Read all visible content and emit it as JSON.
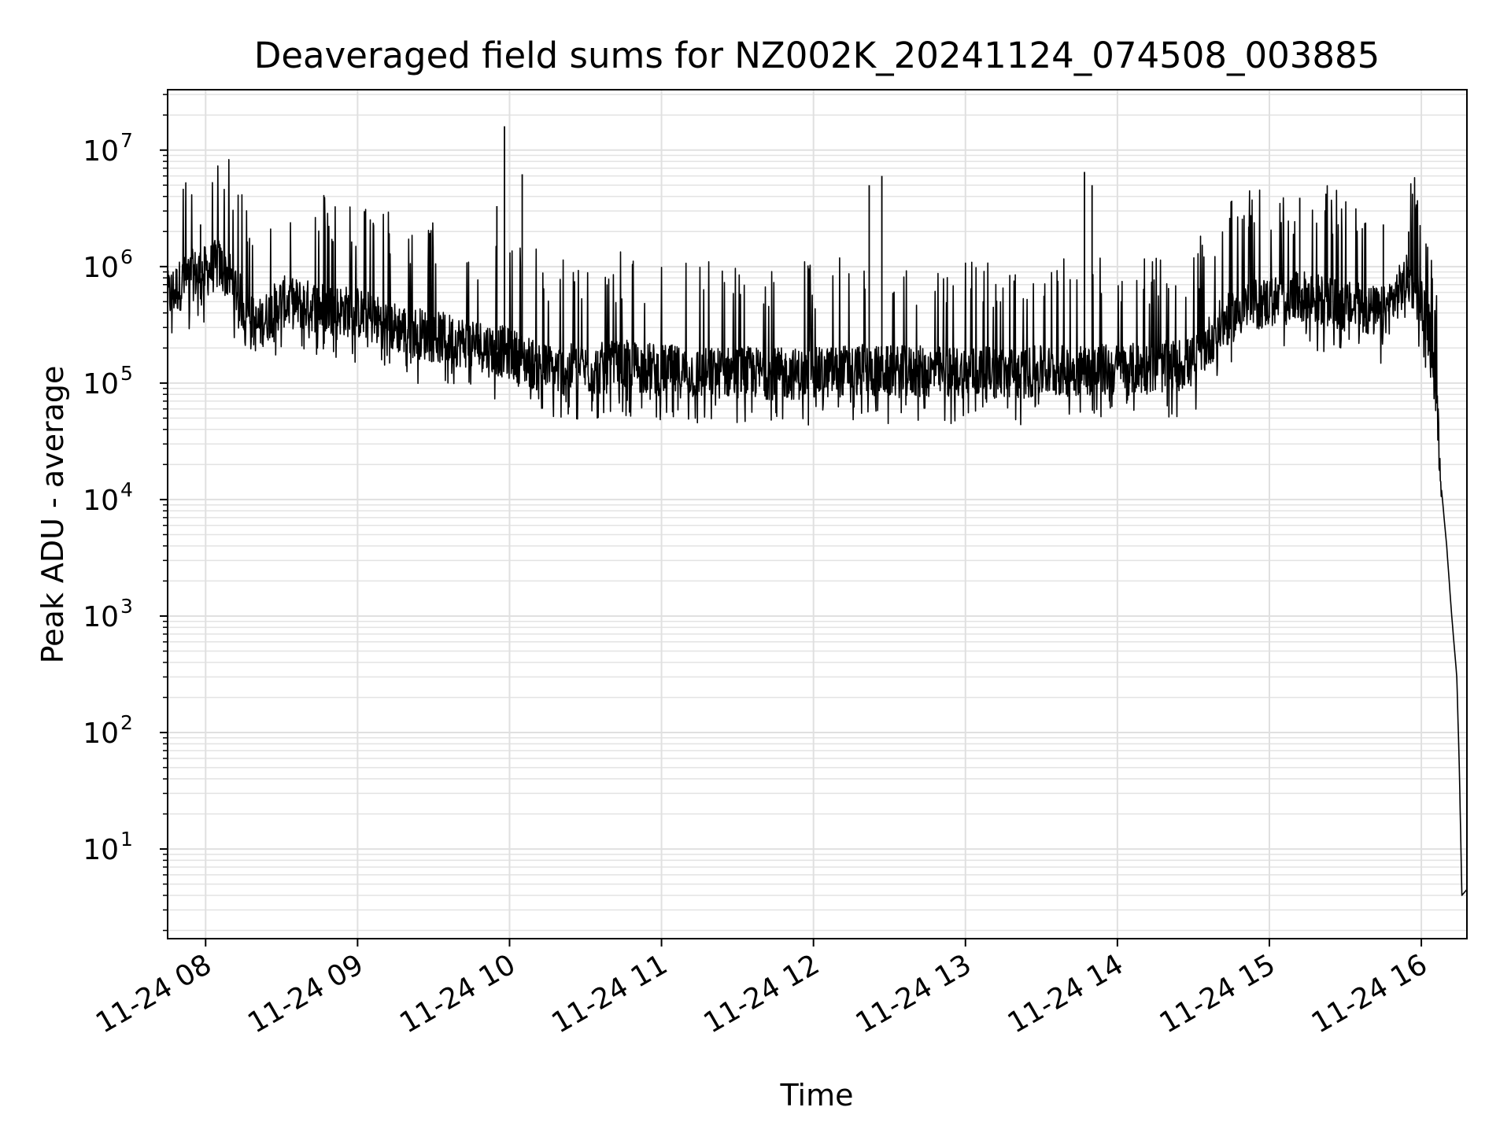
{
  "chart_data": {
    "type": "line",
    "title": "Deaveraged field sums for NZ002K_20241124_074508_003885",
    "xlabel": "Time",
    "ylabel": "Peak ADU - average",
    "y_scale": "log",
    "ylim": [
      1.7,
      33000000
    ],
    "xlim": [
      "2024-11-24 07:45",
      "2024-11-24 16:18"
    ],
    "grid": true,
    "line_color": "#000000",
    "x_ticks": [
      {
        "value": "2024-11-24 08:00",
        "label": "11-24 08"
      },
      {
        "value": "2024-11-24 09:00",
        "label": "11-24 09"
      },
      {
        "value": "2024-11-24 10:00",
        "label": "11-24 10"
      },
      {
        "value": "2024-11-24 11:00",
        "label": "11-24 11"
      },
      {
        "value": "2024-11-24 12:00",
        "label": "11-24 12"
      },
      {
        "value": "2024-11-24 13:00",
        "label": "11-24 13"
      },
      {
        "value": "2024-11-24 14:00",
        "label": "11-24 14"
      },
      {
        "value": "2024-11-24 15:00",
        "label": "11-24 15"
      },
      {
        "value": "2024-11-24 16:00",
        "label": "11-24 16"
      }
    ],
    "y_ticks": [
      {
        "value": 10,
        "base": "10",
        "exp": "1"
      },
      {
        "value": 100,
        "base": "10",
        "exp": "2"
      },
      {
        "value": 1000,
        "base": "10",
        "exp": "3"
      },
      {
        "value": 10000,
        "base": "10",
        "exp": "4"
      },
      {
        "value": 100000,
        "base": "10",
        "exp": "5"
      },
      {
        "value": 1000000,
        "base": "10",
        "exp": "6"
      },
      {
        "value": 10000000,
        "base": "10",
        "exp": "7"
      }
    ],
    "series": [
      {
        "points": [
          [
            "2024-11-24 07:45",
            550000
          ],
          [
            "2024-11-24 07:50",
            700000
          ],
          [
            "2024-11-24 07:55",
            850000
          ],
          [
            "2024-11-24 08:00",
            900000
          ],
          [
            "2024-11-24 08:05",
            1050000
          ],
          [
            "2024-11-24 08:10",
            800000
          ],
          [
            "2024-11-24 08:15",
            450000
          ],
          [
            "2024-11-24 08:20",
            300000
          ],
          [
            "2024-11-24 08:30",
            500000
          ],
          [
            "2024-11-24 08:45",
            450000
          ],
          [
            "2024-11-24 09:00",
            400000
          ],
          [
            "2024-11-24 09:15",
            300000
          ],
          [
            "2024-11-24 09:30",
            250000
          ],
          [
            "2024-11-24 09:45",
            220000
          ],
          [
            "2024-11-24 10:00",
            180000
          ],
          [
            "2024-11-24 10:15",
            130000
          ],
          [
            "2024-11-24 10:30",
            130000
          ],
          [
            "2024-11-24 10:45",
            140000
          ],
          [
            "2024-11-24 11:00",
            130000
          ],
          [
            "2024-11-24 11:15",
            120000
          ],
          [
            "2024-11-24 11:30",
            125000
          ],
          [
            "2024-11-24 11:45",
            120000
          ],
          [
            "2024-11-24 12:00",
            120000
          ],
          [
            "2024-11-24 12:15",
            130000
          ],
          [
            "2024-11-24 12:30",
            125000
          ],
          [
            "2024-11-24 12:45",
            125000
          ],
          [
            "2024-11-24 13:00",
            125000
          ],
          [
            "2024-11-24 13:15",
            120000
          ],
          [
            "2024-11-24 13:30",
            125000
          ],
          [
            "2024-11-24 13:45",
            130000
          ],
          [
            "2024-11-24 14:00",
            130000
          ],
          [
            "2024-11-24 14:15",
            135000
          ],
          [
            "2024-11-24 14:30",
            150000
          ],
          [
            "2024-11-24 14:40",
            300000
          ],
          [
            "2024-11-24 14:50",
            450000
          ],
          [
            "2024-11-24 15:00",
            500000
          ],
          [
            "2024-11-24 15:15",
            550000
          ],
          [
            "2024-11-24 15:30",
            450000
          ],
          [
            "2024-11-24 15:45",
            400000
          ],
          [
            "2024-11-24 15:55",
            800000
          ],
          [
            "2024-11-24 16:00",
            500000
          ],
          [
            "2024-11-24 16:03",
            300000
          ],
          [
            "2024-11-24 16:05",
            120000
          ],
          [
            "2024-11-24 16:07",
            30000
          ],
          [
            "2024-11-24 16:08",
            12000
          ],
          [
            "2024-11-24 16:10",
            4000
          ],
          [
            "2024-11-24 16:12",
            1000
          ],
          [
            "2024-11-24 16:14",
            300
          ],
          [
            "2024-11-24 16:15",
            50
          ],
          [
            "2024-11-24 16:16",
            4
          ],
          [
            "2024-11-24 16:18",
            4.5
          ]
        ],
        "spikes": [
          [
            "2024-11-24 07:58",
            2300000
          ],
          [
            "2024-11-24 09:55",
            3300000
          ],
          [
            "2024-11-24 09:58",
            16000000
          ],
          [
            "2024-11-24 10:05",
            6200000
          ],
          [
            "2024-11-24 12:22",
            5000000
          ],
          [
            "2024-11-24 12:27",
            6000000
          ],
          [
            "2024-11-24 13:47",
            6500000
          ],
          [
            "2024-11-24 13:50",
            5000000
          ],
          [
            "2024-11-24 15:12",
            3900000
          ],
          [
            "2024-11-24 15:45",
            2300000
          ],
          [
            "2024-11-24 15:55",
            2000000
          ]
        ]
      }
    ]
  }
}
